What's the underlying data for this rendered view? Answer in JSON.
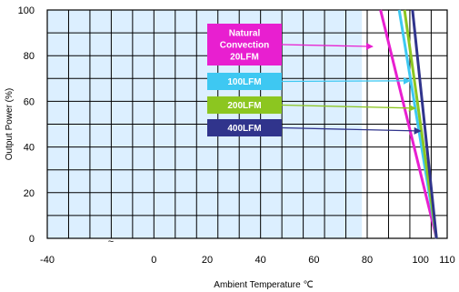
{
  "chart_data": {
    "type": "line",
    "xlabel": "Ambient Temperature",
    "xunit": "℃",
    "ylabel": "Output Power  (%)",
    "xlim": [
      -40,
      110
    ],
    "ylim": [
      0,
      100
    ],
    "x_ticks": [
      "-40",
      "0",
      "20",
      "40",
      "60",
      "80",
      "100",
      "110"
    ],
    "y_ticks": [
      "0",
      "20",
      "40",
      "60",
      "80",
      "100"
    ],
    "grid": true,
    "shaded_region": {
      "from": -40,
      "to": 78,
      "color": "#dcefff"
    },
    "break_mark": "~",
    "series": [
      {
        "name": "Natural Convection 20LFM",
        "label_lines": [
          "Natural",
          "Convection",
          "20LFM"
        ],
        "color": "#e81fd0",
        "x": [
          85,
          106
        ],
        "y": [
          100,
          0
        ],
        "arrow_to": [
          82,
          84
        ]
      },
      {
        "name": "100LFM",
        "label_lines": [
          "100LFM"
        ],
        "color": "#3ec8f2",
        "x": [
          92,
          106
        ],
        "y": [
          100,
          0
        ],
        "arrow_to": [
          96,
          69
        ]
      },
      {
        "name": "200LFM",
        "label_lines": [
          "200LFM"
        ],
        "color": "#8cc620",
        "x": [
          94,
          106
        ],
        "y": [
          100,
          0
        ],
        "arrow_to": [
          98,
          57
        ]
      },
      {
        "name": "400LFM",
        "label_lines": [
          "400LFM"
        ],
        "color": "#30348c",
        "x": [
          97,
          106
        ],
        "y": [
          100,
          0
        ],
        "arrow_to": [
          100,
          47
        ]
      }
    ]
  }
}
